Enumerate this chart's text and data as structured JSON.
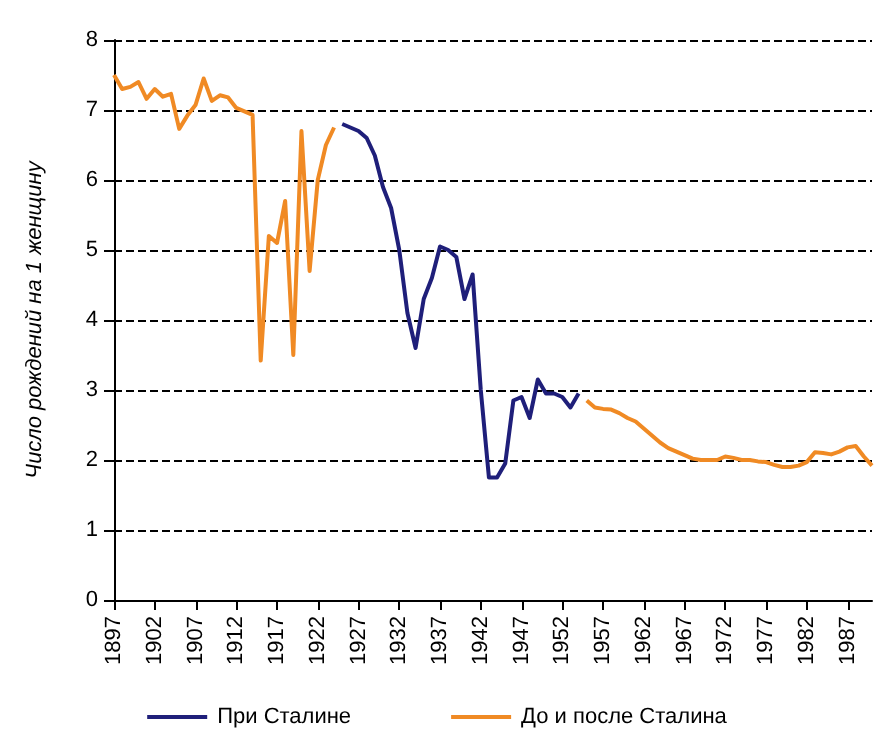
{
  "chart_data": {
    "type": "line",
    "ylabel": "Число рождений на 1 женщину",
    "xlim": [
      1897,
      1990
    ],
    "xticks": [
      1897,
      1902,
      1907,
      1912,
      1917,
      1922,
      1927,
      1932,
      1937,
      1942,
      1947,
      1952,
      1957,
      1962,
      1967,
      1972,
      1977,
      1982,
      1987
    ],
    "ylim": [
      0,
      8
    ],
    "yticks": [
      0,
      1,
      2,
      3,
      4,
      5,
      6,
      7,
      8
    ],
    "grid": "y",
    "legend": "bottom",
    "marker": "none",
    "line_style": "solid",
    "series": [
      {
        "name": "При Сталине",
        "color": "#1f1f7a",
        "x": [
          1925,
          1926,
          1927,
          1928,
          1929,
          1930,
          1931,
          1932,
          1933,
          1934,
          1935,
          1936,
          1937,
          1938,
          1939,
          1940,
          1941,
          1942,
          1943,
          1944,
          1945,
          1946,
          1947,
          1948,
          1949,
          1950,
          1951,
          1952,
          1953,
          1954
        ],
        "values": [
          6.8,
          6.75,
          6.7,
          6.6,
          6.35,
          5.9,
          5.6,
          5.0,
          4.1,
          3.6,
          4.3,
          4.6,
          5.05,
          5.0,
          4.9,
          4.3,
          4.65,
          3.0,
          1.75,
          1.75,
          1.95,
          2.85,
          2.9,
          2.6,
          3.15,
          2.95,
          2.95,
          2.9,
          2.75,
          2.95
        ]
      },
      {
        "name": "До и после Сталина",
        "color": "#f08a24",
        "x": [
          1897,
          1898,
          1899,
          1900,
          1901,
          1902,
          1903,
          1904,
          1905,
          1906,
          1907,
          1908,
          1909,
          1910,
          1911,
          1912,
          1913,
          1914,
          1915,
          1916,
          1917,
          1918,
          1919,
          1920,
          1921,
          1922,
          1923,
          1924,
          1940,
          1955,
          1956,
          1957,
          1958,
          1959,
          1960,
          1961,
          1962,
          1963,
          1964,
          1965,
          1966,
          1967,
          1968,
          1969,
          1970,
          1971,
          1972,
          1973,
          1974,
          1975,
          1976,
          1977,
          1978,
          1979,
          1980,
          1981,
          1982,
          1983,
          1984,
          1985,
          1986,
          1987,
          1988,
          1989,
          1990
        ],
        "values": [
          7.5,
          7.3,
          7.33,
          7.4,
          7.16,
          7.3,
          7.19,
          7.23,
          6.73,
          6.92,
          7.07,
          7.45,
          7.13,
          7.21,
          7.18,
          7.03,
          6.98,
          6.93,
          3.42,
          5.2,
          5.1,
          5.7,
          3.5,
          6.7,
          4.7,
          6.0,
          6.5,
          6.75,
          null,
          2.85,
          2.75,
          2.73,
          2.72,
          2.67,
          2.6,
          2.55,
          2.45,
          2.35,
          2.25,
          2.17,
          2.12,
          2.07,
          2.02,
          2.0,
          2.0,
          2.0,
          2.05,
          2.03,
          2.0,
          2.0,
          1.98,
          1.97,
          1.93,
          1.9,
          1.9,
          1.92,
          1.97,
          2.11,
          2.1,
          2.08,
          2.12,
          2.18,
          2.2,
          2.05,
          1.92
        ]
      }
    ]
  }
}
